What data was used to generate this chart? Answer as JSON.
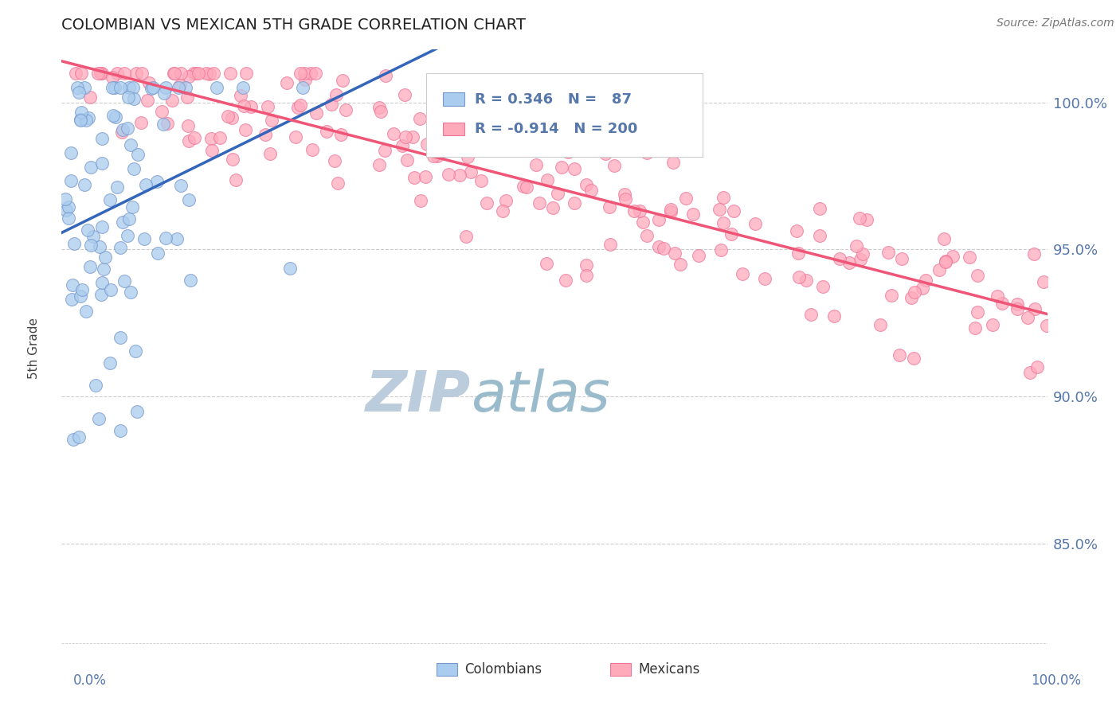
{
  "title": "COLOMBIAN VS MEXICAN 5TH GRADE CORRELATION CHART",
  "source_text": "Source: ZipAtlas.com",
  "ylabel": "5th Grade",
  "y_ticks": [
    0.85,
    0.9,
    0.95,
    1.0
  ],
  "y_tick_labels": [
    "85.0%",
    "90.0%",
    "95.0%",
    "100.0%"
  ],
  "x_range": [
    0.0,
    1.0
  ],
  "y_range": [
    0.815,
    1.018
  ],
  "colombian_R": 0.346,
  "colombian_N": 87,
  "mexican_R": -0.914,
  "mexican_N": 200,
  "colombian_color": "#AACCEE",
  "colombian_edge": "#7799CC",
  "mexican_color": "#FFAABB",
  "mexican_edge": "#EE7799",
  "line_colombian_color": "#3366BB",
  "line_mexican_color": "#EE5577",
  "watermark_zip_color": "#BBCCDD",
  "watermark_atlas_color": "#99BBCC",
  "background_color": "#FFFFFF",
  "grid_color": "#CCCCCC",
  "title_color": "#222222",
  "axis_label_color": "#5577AA",
  "seed": 42
}
